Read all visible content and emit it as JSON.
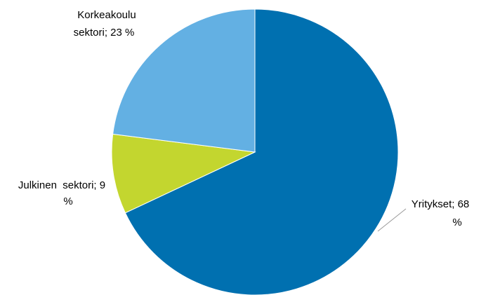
{
  "chart_data": {
    "type": "pie",
    "values": [
      68,
      9,
      23
    ],
    "value_labels": [
      [
        "Yritykset; 68",
        "%"
      ],
      [
        "Julkinen  sektori; 9",
        "%"
      ],
      [
        "Korkeakoulu",
        "sektori; 23 %"
      ]
    ],
    "colors": [
      "#0070b0",
      "#c3d62f",
      "#63b0e3"
    ]
  }
}
